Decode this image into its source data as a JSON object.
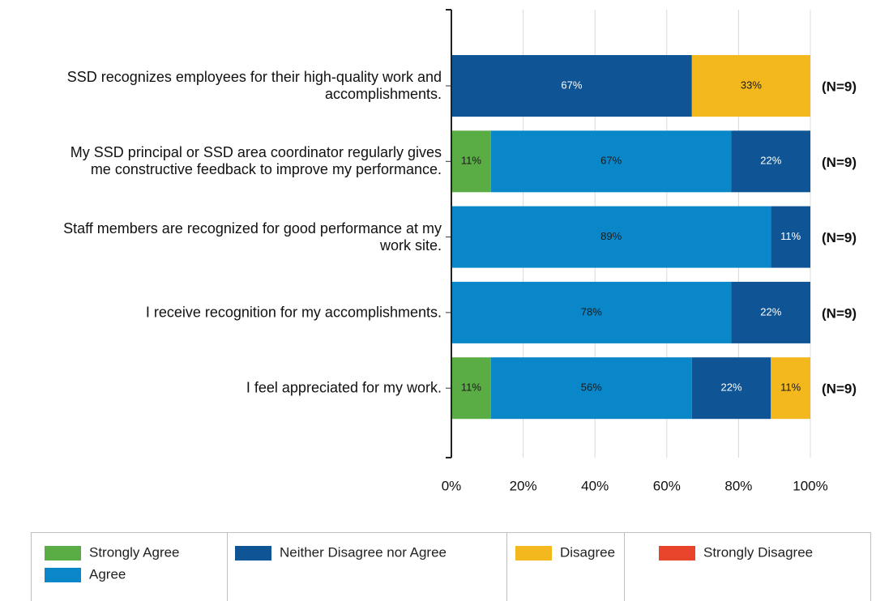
{
  "chart_data": {
    "type": "stacked-bar-horizontal",
    "categories": [
      "SSD recognizes employees for their high-quality work and accomplishments.",
      "My SSD principal or SSD area coordinator regularly gives me constructive feedback to improve my performance.",
      "Staff members are recognized for good performance at my work site.",
      "I receive recognition for my accomplishments.",
      "I feel appreciated for my work."
    ],
    "series": [
      {
        "name": "Strongly Agree",
        "color": "#5aac44",
        "values": [
          0,
          11,
          0,
          0,
          11
        ],
        "value_labels": [
          null,
          "11%",
          null,
          null,
          "11%"
        ]
      },
      {
        "name": "Agree",
        "color": "#0a87c9",
        "values": [
          0,
          67,
          89,
          78,
          56
        ],
        "value_labels": [
          null,
          "67%",
          "89%",
          "78%",
          "56%"
        ]
      },
      {
        "name": "Neither Disagree nor Agree",
        "color": "#0f5596",
        "values": [
          67,
          22,
          11,
          22,
          22
        ],
        "value_labels": [
          "67%",
          "22%",
          "11%",
          "22%",
          "22%"
        ]
      },
      {
        "name": "Disagree",
        "color": "#f2b81d",
        "values": [
          33,
          0,
          0,
          0,
          11
        ],
        "value_labels": [
          "33%",
          null,
          null,
          null,
          "11%"
        ]
      },
      {
        "name": "Strongly Disagree",
        "color": "#e8442b",
        "values": [
          0,
          0,
          0,
          0,
          0
        ],
        "value_labels": [
          null,
          null,
          null,
          null,
          null
        ]
      }
    ],
    "annotations": [
      "(N=9)",
      "(N=9)",
      "(N=9)",
      "(N=9)",
      "(N=9)"
    ],
    "xlim": [
      0,
      100
    ],
    "xticks": [
      {
        "value": 0,
        "label": "0%"
      },
      {
        "value": 20,
        "label": "20%"
      },
      {
        "value": 40,
        "label": "40%"
      },
      {
        "value": 60,
        "label": "60%"
      },
      {
        "value": 80,
        "label": "80%"
      },
      {
        "value": 100,
        "label": "100%"
      }
    ],
    "grid": true,
    "legend": "bottom"
  }
}
